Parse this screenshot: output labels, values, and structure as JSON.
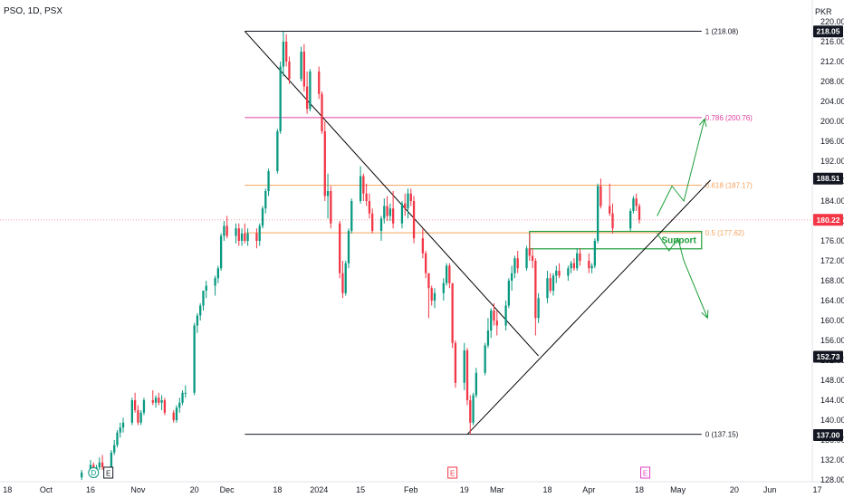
{
  "header": {
    "title": "PSO, 1D, PSX"
  },
  "currency": "PKR",
  "colors": {
    "up": "#089981",
    "down": "#f23645",
    "fib_line": "#131722",
    "fib_786": "#e040a0",
    "fib_618": "#f7a35c",
    "fib_05": "#f7a35c",
    "drawing": "#000000",
    "annotation": "#1e9e3a",
    "current_line": "#f4a0a8",
    "event_d": "#089981",
    "event_e_red": "#f23645",
    "event_e_pink": "#e040c0"
  },
  "chart_data": {
    "type": "candlestick",
    "title": "PSO, 1D, PSX",
    "ylim": [
      126.5,
      222
    ],
    "y_ticks": [
      128.0,
      132.0,
      136.0,
      140.0,
      144.0,
      148.0,
      152.0,
      156.0,
      160.0,
      164.0,
      168.0,
      172.0,
      176.0,
      180.0,
      184.0,
      188.0,
      192.0,
      196.0,
      200.0,
      204.0,
      208.0,
      212.0,
      216.0,
      220.0
    ],
    "x_ticks": [
      {
        "label": "18",
        "date": "2023-09-18"
      },
      {
        "label": "Oct",
        "date": "2023-10-01"
      },
      {
        "label": "16",
        "date": "2023-10-16"
      },
      {
        "label": "Nov",
        "date": "2023-11-01"
      },
      {
        "label": "20",
        "date": "2023-11-20"
      },
      {
        "label": "Dec",
        "date": "2023-12-01"
      },
      {
        "label": "18",
        "date": "2023-12-18"
      },
      {
        "label": "2024",
        "date": "2024-01-01"
      },
      {
        "label": "15",
        "date": "2024-01-15"
      },
      {
        "label": "Feb",
        "date": "2024-02-01"
      },
      {
        "label": "19",
        "date": "2024-02-19"
      },
      {
        "label": "Mar",
        "date": "2024-03-01"
      },
      {
        "label": "18",
        "date": "2024-03-18"
      },
      {
        "label": "Apr",
        "date": "2024-04-01"
      },
      {
        "label": "18",
        "date": "2024-04-18"
      },
      {
        "label": "May",
        "date": "2024-05-01"
      },
      {
        "label": "20",
        "date": "2024-05-20"
      },
      {
        "label": "Jun",
        "date": "2024-06-01"
      },
      {
        "label": "17",
        "date": "2024-06-17"
      }
    ],
    "price_labels": [
      {
        "value": 218.05,
        "text": "218.05",
        "bg": "#131722",
        "fg": "#ffffff"
      },
      {
        "value": 188.51,
        "text": "188.51",
        "bg": "#131722",
        "fg": "#ffffff"
      },
      {
        "value": 180.22,
        "text": "180.22",
        "bg": "#f23645",
        "fg": "#ffffff"
      },
      {
        "value": 152.73,
        "text": "152.73",
        "bg": "#131722",
        "fg": "#ffffff"
      },
      {
        "value": 137.0,
        "text": "137.00",
        "bg": "#131722",
        "fg": "#ffffff"
      }
    ],
    "current_price": 180.22,
    "fib_levels": [
      {
        "ratio": "1",
        "value": 218.08,
        "label": "1 (218.08)",
        "color": "#131722"
      },
      {
        "ratio": "0.786",
        "value": 200.76,
        "label": "0.786 (200.76)",
        "color": "#e040a0"
      },
      {
        "ratio": "0.618",
        "value": 187.17,
        "label": "0.618 (187.17)",
        "color": "#f7a35c"
      },
      {
        "ratio": "0.5",
        "value": 177.62,
        "label": "0.5 (177.62)",
        "color": "#f7a35c"
      },
      {
        "ratio": "0",
        "value": 137.15,
        "label": "0 (137.15)",
        "color": "#131722"
      }
    ],
    "fib_range": {
      "start": "2023-12-07",
      "end": "2024-05-09"
    },
    "support": {
      "label": "Support",
      "top": 177.9,
      "bottom": 174.4,
      "start": "2024-03-12",
      "end": "2024-05-09"
    },
    "trendlines": [
      {
        "name": "downtrend-line",
        "x1": "2023-12-07",
        "y1": 218.08,
        "x2": "2024-03-15",
        "y2": 152.9
      },
      {
        "name": "uptrend-line",
        "x1": "2024-02-20",
        "y1": 137.15,
        "x2": "2024-05-12",
        "y2": 188.2
      }
    ],
    "projections": [
      {
        "name": "bullish-projection",
        "points": [
          [
            "2024-04-24",
            181.0
          ],
          [
            "2024-04-29",
            187.0
          ],
          [
            "2024-05-03",
            184.0
          ],
          [
            "2024-05-10",
            200.5
          ]
        ]
      },
      {
        "name": "bearish-projection",
        "points": [
          [
            "2024-04-24",
            177.5
          ],
          [
            "2024-04-28",
            174.0
          ],
          [
            "2024-05-01",
            176.5
          ],
          [
            "2024-05-03",
            172.0
          ],
          [
            "2024-05-11",
            160.5
          ]
        ]
      }
    ],
    "events": [
      {
        "type": "D",
        "date": "2023-10-17",
        "color": "#089981"
      },
      {
        "type": "E",
        "date": "2023-10-22",
        "color": "#131722"
      },
      {
        "type": "E",
        "date": "2024-02-15",
        "color": "#f23645"
      },
      {
        "type": "E",
        "date": "2024-04-20",
        "color": "#e040c0"
      }
    ],
    "candles": [
      [
        "2023-10-13",
        128.5,
        130.0,
        128.0,
        129.5
      ],
      [
        "2023-10-16",
        129.5,
        132.0,
        129.0,
        131.0
      ],
      [
        "2023-10-17",
        131.0,
        131.5,
        128.5,
        129.0
      ],
      [
        "2023-10-18",
        129.0,
        131.0,
        128.5,
        130.5
      ],
      [
        "2023-10-19",
        130.5,
        132.5,
        130.0,
        131.5
      ],
      [
        "2023-10-20",
        131.5,
        133.0,
        130.0,
        130.5
      ],
      [
        "2023-10-23",
        130.5,
        134.0,
        130.0,
        133.5
      ],
      [
        "2023-10-24",
        133.5,
        136.0,
        133.0,
        135.0
      ],
      [
        "2023-10-25",
        135.0,
        138.0,
        134.5,
        137.5
      ],
      [
        "2023-10-26",
        137.5,
        139.5,
        136.5,
        138.5
      ],
      [
        "2023-10-27",
        138.5,
        140.5,
        137.5,
        139.5
      ],
      [
        "2023-10-30",
        139.5,
        144.5,
        139.0,
        144.0
      ],
      [
        "2023-10-31",
        144.0,
        145.5,
        141.5,
        142.0
      ],
      [
        "2023-11-01",
        142.0,
        143.0,
        139.0,
        139.5
      ],
      [
        "2023-11-02",
        139.5,
        142.0,
        139.0,
        141.5
      ],
      [
        "2023-11-03",
        141.5,
        144.5,
        141.0,
        144.0
      ],
      [
        "2023-11-06",
        144.0,
        146.0,
        143.0,
        143.5
      ],
      [
        "2023-11-07",
        143.5,
        145.0,
        142.5,
        144.5
      ],
      [
        "2023-11-08",
        144.5,
        145.5,
        143.0,
        143.5
      ],
      [
        "2023-11-09",
        143.5,
        145.0,
        142.0,
        144.0
      ],
      [
        "2023-11-10",
        144.0,
        144.5,
        141.0,
        141.5
      ],
      [
        "2023-11-13",
        141.5,
        142.0,
        139.5,
        140.0
      ],
      [
        "2023-11-14",
        140.0,
        143.0,
        139.5,
        142.5
      ],
      [
        "2023-11-15",
        142.5,
        144.5,
        141.5,
        143.5
      ],
      [
        "2023-11-16",
        143.5,
        146.0,
        143.0,
        145.5
      ],
      [
        "2023-11-17",
        145.5,
        147.0,
        144.5,
        145.5
      ],
      [
        "2023-11-20",
        145.5,
        159.5,
        145.0,
        159.0
      ],
      [
        "2023-11-21",
        159.0,
        161.5,
        157.5,
        161.0
      ],
      [
        "2023-11-22",
        161.0,
        163.5,
        160.0,
        163.0
      ],
      [
        "2023-11-23",
        163.0,
        165.5,
        162.0,
        166.0
      ],
      [
        "2023-11-24",
        166.0,
        168.0,
        164.5,
        167.0
      ],
      [
        "2023-11-27",
        167.0,
        169.0,
        165.0,
        168.5
      ],
      [
        "2023-11-28",
        168.5,
        171.0,
        167.5,
        170.5
      ],
      [
        "2023-11-29",
        170.5,
        177.5,
        170.0,
        177.0
      ],
      [
        "2023-11-30",
        177.0,
        180.0,
        176.0,
        179.0
      ],
      [
        "2023-12-01",
        179.0,
        181.0,
        176.5,
        177.0
      ],
      [
        "2023-12-04",
        177.0,
        179.5,
        175.5,
        178.5
      ],
      [
        "2023-12-05",
        178.5,
        179.5,
        175.0,
        176.0
      ],
      [
        "2023-12-06",
        176.0,
        178.5,
        175.0,
        177.5
      ],
      [
        "2023-12-07",
        177.5,
        179.5,
        175.5,
        176.0
      ],
      [
        "2023-12-08",
        176.0,
        178.5,
        175.0,
        177.5
      ],
      [
        "2023-12-11",
        177.5,
        178.5,
        174.5,
        176.0
      ],
      [
        "2023-12-12",
        176.0,
        179.5,
        175.0,
        179.0
      ],
      [
        "2023-12-13",
        179.0,
        183.0,
        178.5,
        182.5
      ],
      [
        "2023-12-14",
        182.5,
        186.5,
        181.5,
        186.0
      ],
      [
        "2023-12-15",
        186.0,
        190.5,
        185.0,
        190.0
      ],
      [
        "2023-12-18",
        190.0,
        198.5,
        189.5,
        198.0
      ],
      [
        "2023-12-19",
        198.0,
        212.0,
        197.5,
        211.0
      ],
      [
        "2023-12-20",
        211.0,
        218.0,
        209.0,
        216.0
      ],
      [
        "2023-12-21",
        216.0,
        217.5,
        211.0,
        212.0
      ],
      [
        "2023-12-22",
        212.0,
        213.0,
        207.5,
        208.5
      ],
      [
        "2023-12-26",
        208.5,
        215.0,
        208.0,
        214.0
      ],
      [
        "2023-12-27",
        214.0,
        215.5,
        206.0,
        207.0
      ],
      [
        "2023-12-28",
        207.0,
        210.0,
        201.5,
        202.5
      ],
      [
        "2023-12-29",
        202.5,
        210.5,
        202.0,
        210.0
      ],
      [
        "2024-01-01",
        210.0,
        211.0,
        204.5,
        205.5
      ],
      [
        "2024-01-02",
        205.5,
        206.0,
        197.5,
        198.0
      ],
      [
        "2024-01-03",
        198.0,
        200.0,
        184.0,
        185.0
      ],
      [
        "2024-01-04",
        185.0,
        189.5,
        180.5,
        186.0
      ],
      [
        "2024-01-05",
        186.0,
        187.0,
        178.5,
        179.5
      ],
      [
        "2024-01-08",
        179.5,
        180.0,
        168.5,
        169.5
      ],
      [
        "2024-01-09",
        169.5,
        172.0,
        164.5,
        165.5
      ],
      [
        "2024-01-10",
        165.5,
        172.0,
        165.0,
        171.5
      ],
      [
        "2024-01-11",
        171.5,
        178.5,
        170.5,
        178.0
      ],
      [
        "2024-01-12",
        178.0,
        184.5,
        177.5,
        184.0
      ],
      [
        "2024-01-15",
        184.0,
        191.0,
        183.5,
        189.0
      ],
      [
        "2024-01-16",
        189.0,
        189.5,
        184.0,
        185.5
      ],
      [
        "2024-01-17",
        185.5,
        187.5,
        183.0,
        184.0
      ],
      [
        "2024-01-18",
        184.0,
        185.5,
        180.5,
        181.5
      ],
      [
        "2024-01-19",
        181.5,
        182.5,
        177.5,
        178.0
      ],
      [
        "2024-01-22",
        178.0,
        181.0,
        176.0,
        180.5
      ],
      [
        "2024-01-23",
        180.5,
        184.5,
        179.5,
        183.0
      ],
      [
        "2024-01-24",
        183.0,
        185.0,
        180.0,
        181.0
      ],
      [
        "2024-01-25",
        181.0,
        183.5,
        180.0,
        182.5
      ],
      [
        "2024-01-26",
        182.5,
        186.0,
        178.5,
        179.5
      ],
      [
        "2024-01-29",
        179.5,
        184.0,
        178.5,
        183.5
      ],
      [
        "2024-01-30",
        183.5,
        185.5,
        181.0,
        182.5
      ],
      [
        "2024-01-31",
        182.5,
        186.5,
        180.5,
        185.5
      ],
      [
        "2024-02-01",
        185.5,
        186.5,
        183.0,
        184.0
      ],
      [
        "2024-02-02",
        184.0,
        185.0,
        175.5,
        176.5
      ],
      [
        "2024-02-05",
        176.5,
        178.5,
        172.5,
        173.5
      ],
      [
        "2024-02-06",
        173.5,
        174.0,
        168.5,
        169.5
      ],
      [
        "2024-02-07",
        169.5,
        169.5,
        160.5,
        166.5
      ],
      [
        "2024-02-08",
        166.5,
        167.0,
        163.0,
        164.0
      ],
      [
        "2024-02-09",
        164.0,
        166.5,
        162.5,
        165.5
      ],
      [
        "2024-02-12",
        165.5,
        168.5,
        164.0,
        167.5
      ],
      [
        "2024-02-13",
        167.5,
        171.5,
        167.0,
        171.0
      ],
      [
        "2024-02-14",
        171.0,
        171.5,
        166.5,
        167.5
      ],
      [
        "2024-02-15",
        167.5,
        167.5,
        154.5,
        155.5
      ],
      [
        "2024-02-16",
        155.5,
        156.0,
        146.5,
        147.5
      ],
      [
        "2024-02-19",
        147.5,
        155.5,
        146.0,
        154.0
      ],
      [
        "2024-02-20",
        154.0,
        154.5,
        143.0,
        144.0
      ],
      [
        "2024-02-21",
        144.0,
        145.0,
        137.2,
        139.5
      ],
      [
        "2024-02-22",
        139.5,
        145.5,
        139.0,
        145.0
      ],
      [
        "2024-02-23",
        145.0,
        150.5,
        144.5,
        149.5
      ],
      [
        "2024-02-26",
        149.5,
        155.5,
        149.0,
        155.0
      ],
      [
        "2024-02-27",
        155.0,
        160.5,
        154.5,
        158.0
      ],
      [
        "2024-02-28",
        158.0,
        162.5,
        156.5,
        162.0
      ],
      [
        "2024-02-29",
        162.0,
        163.5,
        159.0,
        160.0
      ],
      [
        "2024-03-01",
        160.0,
        162.0,
        157.0,
        159.0
      ],
      [
        "2024-03-04",
        159.0,
        164.0,
        158.0,
        163.0
      ],
      [
        "2024-03-05",
        163.0,
        168.5,
        162.5,
        168.0
      ],
      [
        "2024-03-06",
        168.0,
        171.0,
        166.0,
        169.5
      ],
      [
        "2024-03-07",
        169.5,
        173.0,
        168.5,
        172.5
      ],
      [
        "2024-03-08",
        172.5,
        174.0,
        169.5,
        170.5
      ],
      [
        "2024-03-11",
        170.5,
        175.0,
        170.0,
        174.5
      ],
      [
        "2024-03-12",
        174.5,
        177.5,
        172.0,
        173.0
      ],
      [
        "2024-03-13",
        173.0,
        174.5,
        170.5,
        172.0
      ],
      [
        "2024-03-14",
        172.0,
        172.5,
        157.0,
        160.5
      ],
      [
        "2024-03-15",
        160.5,
        165.5,
        159.5,
        164.5
      ],
      [
        "2024-03-18",
        164.5,
        170.0,
        163.5,
        168.5
      ],
      [
        "2024-03-19",
        168.5,
        169.5,
        165.5,
        166.0
      ],
      [
        "2024-03-20",
        166.0,
        169.5,
        165.0,
        169.0
      ],
      [
        "2024-03-21",
        169.0,
        171.0,
        167.5,
        170.0
      ],
      [
        "2024-03-22",
        170.0,
        171.5,
        168.5,
        169.0
      ],
      [
        "2024-03-25",
        169.0,
        171.0,
        168.0,
        170.5
      ],
      [
        "2024-03-26",
        170.5,
        172.0,
        169.5,
        171.5
      ],
      [
        "2024-03-27",
        171.5,
        172.5,
        170.0,
        170.5
      ],
      [
        "2024-03-28",
        170.5,
        174.5,
        170.0,
        173.5
      ],
      [
        "2024-03-29",
        173.5,
        174.5,
        171.0,
        172.0
      ],
      [
        "2024-04-01",
        172.0,
        173.5,
        169.5,
        170.5
      ],
      [
        "2024-04-02",
        170.5,
        171.5,
        169.5,
        171.0
      ],
      [
        "2024-04-03",
        171.0,
        176.5,
        170.5,
        176.0
      ],
      [
        "2024-04-04",
        176.0,
        187.5,
        175.5,
        187.0
      ],
      [
        "2024-04-05",
        187.0,
        188.5,
        182.5,
        183.0
      ],
      [
        "2024-04-08",
        183.0,
        187.5,
        181.0,
        181.5
      ],
      [
        "2024-04-09",
        181.5,
        183.5,
        177.5,
        178.5
      ],
      [
        "2024-04-15",
        178.5,
        182.5,
        178.0,
        182.0
      ],
      [
        "2024-04-16",
        182.0,
        185.0,
        181.5,
        184.5
      ],
      [
        "2024-04-17",
        184.5,
        185.5,
        182.0,
        183.0
      ],
      [
        "2024-04-18",
        183.0,
        183.5,
        179.5,
        180.22
      ]
    ]
  }
}
